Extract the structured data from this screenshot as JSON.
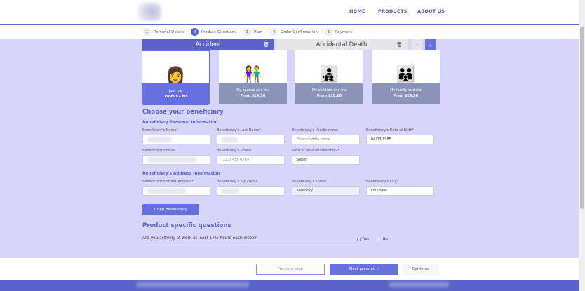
{
  "header": {
    "nav": [
      "HOME",
      "PRODUCTS",
      "ABOUT US"
    ]
  },
  "steps": [
    {
      "n": "1",
      "label": "Personal Details"
    },
    {
      "n": "2",
      "label": "Product Questions"
    },
    {
      "n": "3",
      "label": "Plan"
    },
    {
      "n": "4",
      "label": "Order Confirmation"
    },
    {
      "n": "5",
      "label": "Payment"
    }
  ],
  "tabs": {
    "active": "Accident",
    "other": "Accidental Death",
    "prev": "‹",
    "next": "›"
  },
  "cards": [
    {
      "title": "Just me",
      "price": "From $7.80",
      "icon": "👩"
    },
    {
      "title": "My spouse and me",
      "price": "From $14.56",
      "icon": "👫"
    },
    {
      "title": "My children and me",
      "price": "From $18.20",
      "icon": "👨‍👧‍👦"
    },
    {
      "title": "My family and me",
      "price": "From $24.96",
      "icon": "👪"
    }
  ],
  "form": {
    "title": "Choose your beneficiary",
    "personal_heading": "Beneficiary Personal Information",
    "name_label": "Beneficiary's Name*",
    "lastname_label": "Beneficiary's Last Name*",
    "middle_label": "Beneficiary's Middle name",
    "middle_placeholder": "Enter middle name",
    "dob_label": "Beneficiary's Date of Birth*",
    "dob_value": "04/03/1985",
    "email_label": "Beneficiary's Email",
    "phone_label": "Beneficiary's Phone",
    "phone_placeholder": "(123) 456 6789",
    "rel_label": "What is your relationship?*",
    "rel_value": "Sister",
    "address_heading": "Beneficiary's Address information",
    "street_label": "Beneficiary's Street Address*",
    "zip_label": "Beneficiary's Zip code*",
    "state_label": "Beneficiary's State*",
    "state_value": "Kentucky",
    "city_label": "Beneficiary's City*",
    "city_value": "Louisville",
    "copy_button": "Copy Beneficiary"
  },
  "questions": {
    "title": "Product specific questions",
    "q1": "Are you actively at work at least 17½ hours each week?",
    "yes": "Yes",
    "no": "No",
    "selected": "Yes"
  },
  "footer": {
    "previous": "Previous step",
    "next": "Next product →",
    "continue": "Continue"
  },
  "colors": {
    "accent": "#6670e0",
    "background": "#d6d6fb",
    "header_line": "#5a64c8"
  }
}
